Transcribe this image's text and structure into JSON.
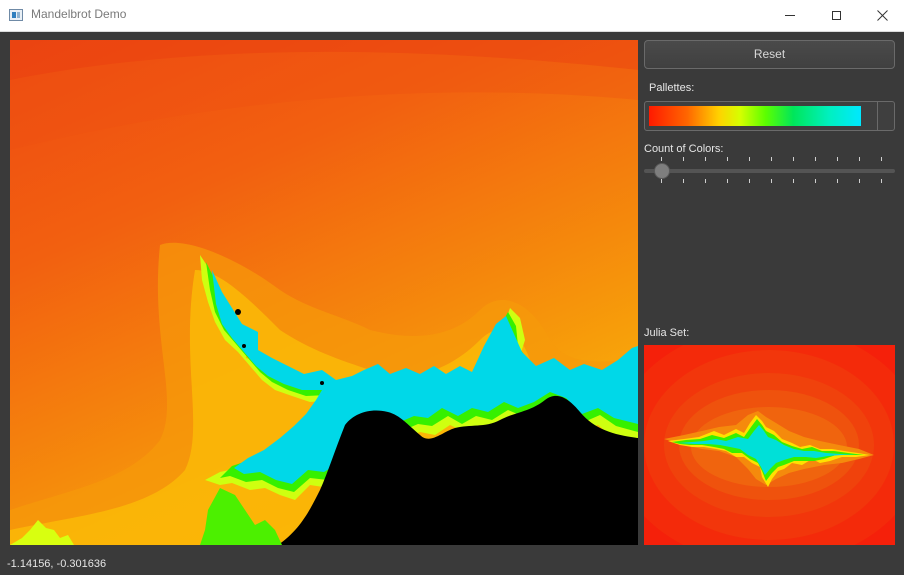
{
  "window": {
    "title": "Mandelbrot Demo",
    "app_icon": "app-window-icon",
    "controls": [
      "minimize-icon",
      "maximize-icon",
      "close-icon"
    ]
  },
  "sidebar": {
    "reset_label": "Reset",
    "palettes_label": "Pallettes:",
    "palette_selected": "rainbow-gradient",
    "count_label": "Count of Colors:",
    "count_slider": {
      "value_fraction": 0.07,
      "tick_count": 12
    },
    "julia_label": "Julia Set:"
  },
  "status": {
    "coordinates": "-1.14156, -0.301636"
  },
  "colors": {
    "background": "#3a3a3a",
    "fractal_interior": "#000000",
    "gradient_outer": "#f05010",
    "gradient_inner": "#ffd200",
    "edge_green": "#5cff00",
    "edge_cyan": "#00e8ff",
    "julia_outer": "#f5200a"
  }
}
